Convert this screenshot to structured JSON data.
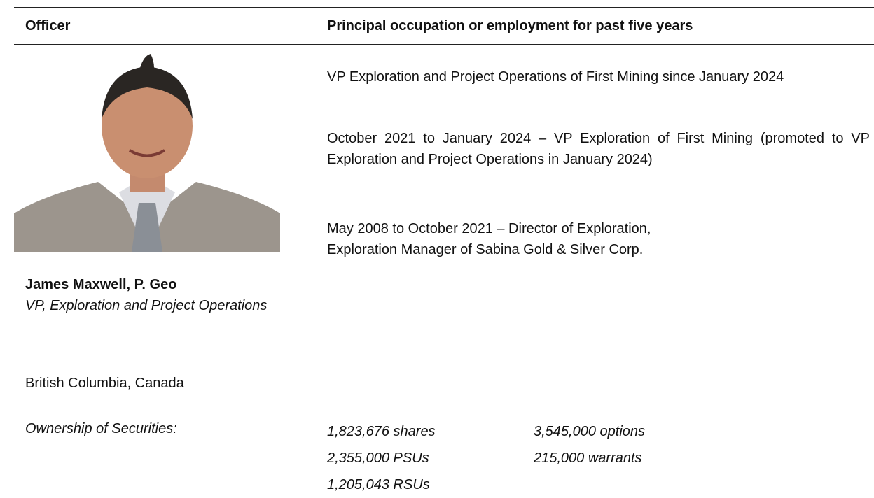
{
  "header": {
    "officer": "Officer",
    "occupation": "Principal occupation or employment for past five years"
  },
  "officer": {
    "name": "James Maxwell, P. Geo",
    "title": "VP, Exploration and Project Operations",
    "location": "British Columbia, Canada"
  },
  "occupation": {
    "paragraphs": [
      "VP Exploration and Project Operations of First Mining since January 2024",
      "October 2021 to January 2024 – VP Exploration of First Mining (promoted to VP Exploration and Project Operations in January 2024)"
    ],
    "last_paragraph_lines": [
      "May 2008 to October 2021 – Director of Exploration,",
      "Exploration Manager of Sabina Gold & Silver Corp."
    ]
  },
  "ownership": {
    "label": "Ownership of Securities:",
    "column_1": [
      "1,823,676 shares",
      "2,355,000 PSUs",
      "1,205,043 RSUs"
    ],
    "column_2": [
      "3,545,000 options",
      "215,000 warrants"
    ]
  }
}
